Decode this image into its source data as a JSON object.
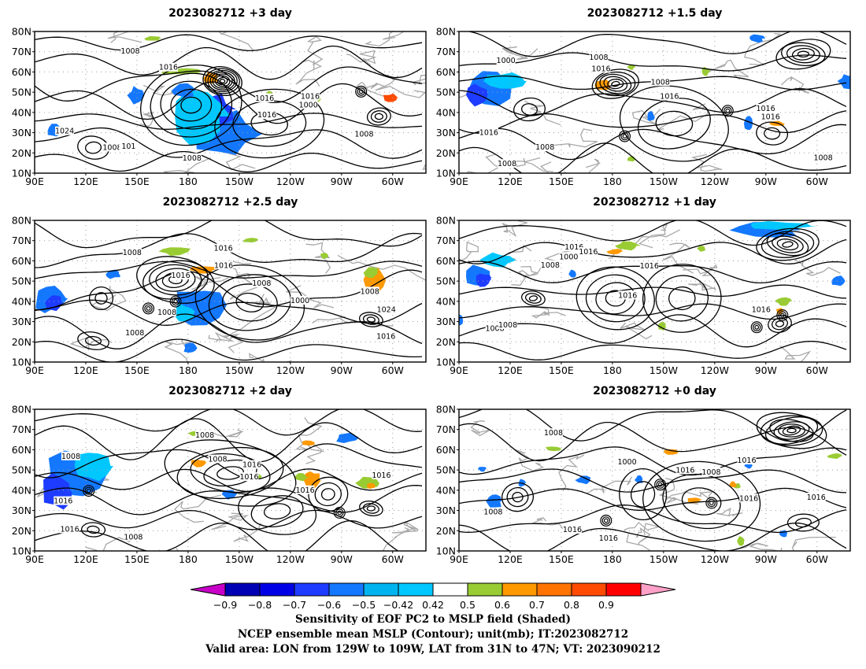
{
  "panels": [
    {
      "id": "p1",
      "title": "2023082712  +3 day",
      "contour_labels": [
        "1008",
        "1016",
        "1008",
        "1016",
        "1000",
        "1008",
        "1016",
        "1024",
        "1008",
        "1016",
        "101"
      ],
      "highs_lows": 1
    },
    {
      "id": "p2",
      "title": "2023082712  +1.5 day",
      "contour_labels": [
        "1000",
        "1016",
        "1008",
        "1016",
        "1016",
        "1008",
        "1008",
        "1016",
        "1008",
        "1016",
        "1008"
      ],
      "highs_lows": 2
    },
    {
      "id": "p3",
      "title": "2023082712  +2.5 day",
      "contour_labels": [
        "1008",
        "1008",
        "1016",
        "1016",
        "1000",
        "1008",
        "1016",
        "1024",
        "1016",
        "1008",
        "1008"
      ],
      "highs_lows": 2
    },
    {
      "id": "p4",
      "title": "2023082712  +1 day",
      "contour_labels": [
        "1008",
        "1016",
        "1008",
        "1000",
        "1016",
        "1016",
        "1016",
        "1008",
        "1016"
      ],
      "highs_lows": 2
    },
    {
      "id": "p5",
      "title": "2023082712  +2 day",
      "contour_labels": [
        "1008",
        "1016",
        "1016",
        "1008",
        "1016",
        "1008",
        "1016",
        "1016",
        "1008",
        "1016"
      ],
      "highs_lows": 2
    },
    {
      "id": "p6",
      "title": "2023082712  +0 day",
      "contour_labels": [
        "1008",
        "1016",
        "1008",
        "1000",
        "1016",
        "1016",
        "1008",
        "1016",
        "1016",
        "1016"
      ],
      "highs_lows": 3
    }
  ],
  "axes": {
    "lat_labels": [
      "80N",
      "70N",
      "60N",
      "50N",
      "40N",
      "30N",
      "20N",
      "10N"
    ],
    "lon_labels": [
      "90E",
      "120E",
      "150E",
      "180",
      "150W",
      "120W",
      "90W",
      "60W"
    ]
  },
  "colorbar": {
    "tick_labels": [
      "−0.9",
      "−0.8",
      "−0.7",
      "−0.6",
      "−0.5",
      "−0.42",
      "0.42",
      "0.5",
      "0.6",
      "0.7",
      "0.8",
      "0.9"
    ],
    "colors": [
      "#c800c8",
      "#0000b4",
      "#0000e6",
      "#1e3cff",
      "#1478ff",
      "#00b4f0",
      "#00c8ff",
      "#ffffff",
      "#99cc33",
      "#ff9900",
      "#ff7300",
      "#ff4b00",
      "#ff0000",
      "#ffa0c8"
    ]
  },
  "shading_colors": {
    "neg_strong": "#0000e6",
    "neg_mid": "#1e3cff",
    "neg_light": "#1478ff",
    "neg_faint": "#00c8ff",
    "pos_green": "#99cc33",
    "pos_orange": "#ff9900",
    "pos_red": "#ff4b00"
  },
  "caption": {
    "line1": "Sensitivity of EOF PC2 to MSLP field (Shaded)",
    "line2": "NCEP ensemble mean MSLP (Contour); unit(mb); IT:2023082712",
    "line3": "Valid area: LON from 129W to 109W, LAT from 31N to 47N; VT: 2023090212"
  }
}
